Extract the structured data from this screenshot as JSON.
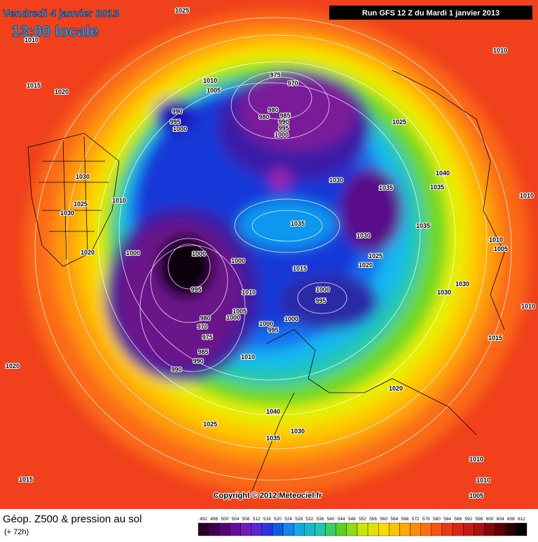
{
  "header": {
    "date": "Vendredi 4 janvier 2013",
    "time": "13:00 locale",
    "run": "Run GFS 12 Z du Mardi 1 janvier 2013"
  },
  "copyright": "Copyright © 2012 Meteociel.fr",
  "legend": {
    "title": "Géop. Z500 & pression au sol",
    "lead": "(+ 72h)",
    "scale": [
      492,
      496,
      500,
      504,
      508,
      512,
      516,
      520,
      524,
      528,
      532,
      536,
      540,
      544,
      548,
      552,
      556,
      560,
      564,
      568,
      572,
      576,
      580,
      584,
      588,
      592,
      596,
      600,
      604,
      608,
      612
    ]
  },
  "isobar_labels": [
    1025,
    1010,
    1010,
    1015,
    1020,
    975,
    970,
    1010,
    1005,
    990,
    995,
    1000,
    980,
    980,
    985,
    990,
    995,
    1000,
    1025,
    1030,
    1040,
    1035,
    1035,
    1030,
    1010,
    1025,
    1030,
    1010,
    1035,
    1035,
    1030,
    1010,
    1005,
    1000,
    1000,
    1020,
    1025,
    1020,
    1000,
    1015,
    995,
    1010,
    1000,
    995,
    1030,
    1030,
    1010,
    1005,
    1000,
    980,
    970,
    1000,
    995,
    1000,
    975,
    985,
    1010,
    990,
    990,
    1015,
    1020,
    1020,
    1040,
    1025,
    1030,
    1035,
    1010,
    1010,
    1015,
    1005
  ]
}
